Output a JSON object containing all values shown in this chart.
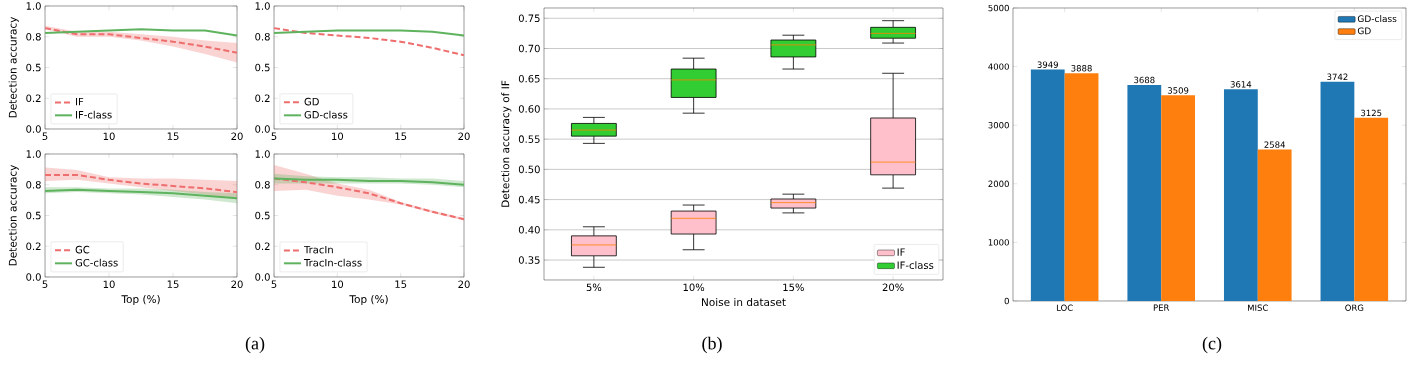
{
  "chart_data": [
    {
      "type": "line",
      "x": [
        5,
        7.5,
        10,
        12.5,
        15,
        17.5,
        20
      ],
      "xlim": [
        5,
        20
      ],
      "xticks": [
        5,
        10,
        15,
        20
      ],
      "ylim": [
        0,
        1
      ],
      "yticks": [
        {
          "value": 0,
          "label": "0.0"
        },
        {
          "value": 0.25,
          "label": "0.2"
        },
        0.5,
        {
          "value": 0.75,
          "label": "0.8"
        },
        {
          "value": 1,
          "label": "1.0"
        }
      ],
      "ylabel": "Detection accuracy",
      "legend": "bottom left",
      "annotations": [
        "(a)"
      ],
      "series": [
        {
          "name": "IF",
          "color": "#ee6e6e",
          "line_style": "dashed",
          "values": [
            0.82,
            0.77,
            0.77,
            0.74,
            0.71,
            0.67,
            0.62
          ],
          "lower": [
            0.81,
            0.75,
            0.75,
            0.72,
            0.67,
            0.61,
            0.54
          ],
          "upper": [
            0.84,
            0.79,
            0.79,
            0.77,
            0.75,
            0.72,
            0.7
          ]
        },
        {
          "name": "IF-class",
          "color": "#5fb35f",
          "line_style": "solid",
          "values": [
            0.78,
            0.79,
            0.8,
            0.81,
            0.8,
            0.8,
            0.76
          ]
        }
      ]
    },
    {
      "type": "line",
      "x": [
        5,
        7.5,
        10,
        12.5,
        15,
        17.5,
        20
      ],
      "xlim": [
        5,
        20
      ],
      "xticks": [
        5,
        10,
        15,
        20
      ],
      "ylim": [
        0,
        1
      ],
      "yticks": [
        {
          "value": 0,
          "label": "0.0"
        },
        {
          "value": 0.25,
          "label": "0.2"
        },
        0.5,
        {
          "value": 0.75,
          "label": "0.8"
        },
        {
          "value": 1,
          "label": "1.0"
        }
      ],
      "legend": "bottom left",
      "series": [
        {
          "name": "GD",
          "color": "#ee6e6e",
          "line_style": "dashed",
          "values": [
            0.82,
            0.78,
            0.76,
            0.74,
            0.71,
            0.66,
            0.6
          ]
        },
        {
          "name": "GD-class",
          "color": "#5fb35f",
          "line_style": "solid",
          "values": [
            0.78,
            0.79,
            0.8,
            0.8,
            0.8,
            0.79,
            0.76
          ]
        }
      ]
    },
    {
      "type": "line",
      "x": [
        5,
        7.5,
        10,
        12.5,
        15,
        17.5,
        20
      ],
      "xlim": [
        5,
        20
      ],
      "xticks": [
        5,
        10,
        15,
        20
      ],
      "ylim": [
        0,
        1
      ],
      "yticks": [
        {
          "value": 0,
          "label": "0.0"
        },
        {
          "value": 0.25,
          "label": "0.2"
        },
        0.5,
        {
          "value": 0.75,
          "label": "0.8"
        },
        {
          "value": 1,
          "label": "1.0"
        }
      ],
      "ylabel": "Detection accuracy",
      "xlabel": "Top (%)",
      "legend": "bottom left",
      "series": [
        {
          "name": "GC",
          "color": "#ee6e6e",
          "line_style": "dashed",
          "values": [
            0.83,
            0.83,
            0.79,
            0.76,
            0.74,
            0.72,
            0.69
          ],
          "lower": [
            0.78,
            0.79,
            0.76,
            0.73,
            0.7,
            0.67,
            0.63
          ],
          "upper": [
            0.89,
            0.87,
            0.81,
            0.8,
            0.8,
            0.79,
            0.78
          ]
        },
        {
          "name": "GC-class",
          "color": "#5fb35f",
          "line_style": "solid",
          "values": [
            0.7,
            0.71,
            0.7,
            0.69,
            0.68,
            0.66,
            0.64
          ],
          "lower": [
            0.68,
            0.69,
            0.68,
            0.67,
            0.65,
            0.63,
            0.6
          ],
          "upper": [
            0.73,
            0.73,
            0.72,
            0.72,
            0.71,
            0.69,
            0.68
          ]
        }
      ]
    },
    {
      "type": "line",
      "x": [
        5,
        7.5,
        10,
        12.5,
        15,
        17.5,
        20
      ],
      "xlim": [
        5,
        20
      ],
      "xticks": [
        5,
        10,
        15,
        20
      ],
      "ylim": [
        0,
        1
      ],
      "yticks": [
        {
          "value": 0,
          "label": "0.0"
        },
        {
          "value": 0.25,
          "label": "0.2"
        },
        0.5,
        {
          "value": 0.75,
          "label": "0.8"
        },
        {
          "value": 1,
          "label": "1.0"
        }
      ],
      "xlabel": "Top (%)",
      "legend": "bottom left",
      "series": [
        {
          "name": "TracIn",
          "color": "#ee6e6e",
          "line_style": "dashed",
          "values": [
            0.8,
            0.77,
            0.73,
            0.68,
            0.6,
            0.53,
            0.47
          ],
          "lower": [
            0.7,
            0.71,
            0.66,
            0.63,
            0.59,
            0.52,
            0.46
          ],
          "upper": [
            0.91,
            0.84,
            0.76,
            0.71,
            0.61,
            0.54,
            0.48
          ]
        },
        {
          "name": "TracIn-class",
          "color": "#5fb35f",
          "line_style": "solid",
          "values": [
            0.8,
            0.79,
            0.79,
            0.78,
            0.78,
            0.77,
            0.75
          ],
          "lower": [
            0.76,
            0.76,
            0.76,
            0.76,
            0.76,
            0.75,
            0.73
          ],
          "upper": [
            0.84,
            0.82,
            0.81,
            0.81,
            0.8,
            0.8,
            0.78
          ]
        }
      ]
    },
    {
      "type": "box",
      "categories": [
        "5%",
        "10%",
        "15%",
        "20%"
      ],
      "xlabel": "Noise in dataset",
      "ylabel": "Detection accuracy of IF",
      "ylim": [
        0.317,
        0.767
      ],
      "yticks": [
        0.35,
        {
          "value": 0.4,
          "label": "0.40"
        },
        0.45,
        {
          "value": 0.5,
          "label": "0.50"
        },
        0.55,
        {
          "value": 0.6,
          "label": "0.60"
        },
        0.65,
        {
          "value": 0.7,
          "label": "0.70"
        },
        0.75
      ],
      "grid": "y",
      "legend": "bottom right",
      "annotations": [
        "(b)"
      ],
      "series": [
        {
          "name": "IF",
          "color": "#ffc0cb",
          "boxes": [
            {
              "low": 0.338,
              "q1": 0.357,
              "median": 0.375,
              "q3": 0.39,
              "high": 0.405
            },
            {
              "low": 0.367,
              "q1": 0.393,
              "median": 0.419,
              "q3": 0.431,
              "high": 0.441
            },
            {
              "low": 0.428,
              "q1": 0.436,
              "median": 0.445,
              "q3": 0.451,
              "high": 0.459
            },
            {
              "low": 0.469,
              "q1": 0.491,
              "median": 0.512,
              "q3": 0.585,
              "high": 0.659
            }
          ]
        },
        {
          "name": "IF-class",
          "color": "#32cd32",
          "boxes": [
            {
              "low": 0.543,
              "q1": 0.555,
              "median": 0.565,
              "q3": 0.576,
              "high": 0.586
            },
            {
              "low": 0.593,
              "q1": 0.619,
              "median": 0.648,
              "q3": 0.666,
              "high": 0.684
            },
            {
              "low": 0.666,
              "q1": 0.686,
              "median": 0.706,
              "q3": 0.714,
              "high": 0.722
            },
            {
              "low": 0.709,
              "q1": 0.717,
              "median": 0.725,
              "q3": 0.735,
              "high": 0.746
            }
          ]
        }
      ]
    },
    {
      "type": "bar",
      "categories": [
        "LOC",
        "PER",
        "MISC",
        "ORG"
      ],
      "ylim": [
        0,
        5000
      ],
      "yticks": [
        0,
        1000,
        2000,
        3000,
        4000,
        5000
      ],
      "legend": "top right",
      "annotations": [
        "(c)"
      ],
      "series": [
        {
          "name": "GD-class",
          "color": "#1f77b4",
          "values": [
            3949,
            3688,
            3614,
            3742
          ],
          "value_labels": [
            "3949",
            "3688",
            "3614",
            "3742"
          ]
        },
        {
          "name": "GD",
          "color": "#ff7f0e",
          "values": [
            3888,
            3509,
            2584,
            3125
          ],
          "value_labels": [
            "3888",
            "3509",
            "2584",
            "3125"
          ]
        }
      ]
    }
  ]
}
